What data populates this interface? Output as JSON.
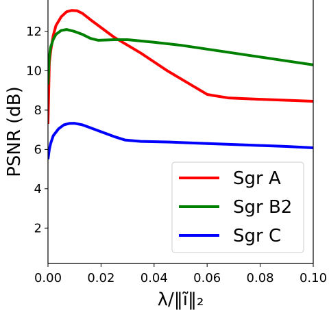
{
  "chart_data": {
    "type": "line",
    "title": "",
    "xlabel": "λ/‖ĩ‖₂",
    "ylabel": "PSNR (dB)",
    "xlim": [
      0.0,
      0.1
    ],
    "ylim": [
      0.2,
      13.6
    ],
    "xticks": [
      0.0,
      0.02,
      0.04,
      0.06,
      0.08,
      0.1
    ],
    "xtick_labels": [
      "0.00",
      "0.02",
      "0.04",
      "0.06",
      "0.08",
      "0.10"
    ],
    "yticks": [
      2,
      4,
      6,
      8,
      10,
      12
    ],
    "ytick_labels": [
      "2",
      "4",
      "6",
      "8",
      "10",
      "12"
    ],
    "grid": false,
    "legend_position": "lower-right",
    "series": [
      {
        "name": "Sgr A",
        "color": "#ff0000",
        "points": [
          [
            0.0,
            7.3
          ],
          [
            0.0005,
            10.4
          ],
          [
            0.001,
            11.0
          ],
          [
            0.002,
            11.8
          ],
          [
            0.003,
            12.3
          ],
          [
            0.005,
            12.75
          ],
          [
            0.007,
            13.0
          ],
          [
            0.009,
            13.07
          ],
          [
            0.011,
            13.05
          ],
          [
            0.013,
            12.92
          ],
          [
            0.016,
            12.6
          ],
          [
            0.02,
            12.2
          ],
          [
            0.025,
            11.7
          ],
          [
            0.03,
            11.3
          ],
          [
            0.035,
            10.9
          ],
          [
            0.04,
            10.45
          ],
          [
            0.045,
            10.0
          ],
          [
            0.05,
            9.6
          ],
          [
            0.055,
            9.2
          ],
          [
            0.06,
            8.8
          ],
          [
            0.062,
            8.75
          ],
          [
            0.068,
            8.62
          ],
          [
            0.08,
            8.55
          ],
          [
            0.1,
            8.45
          ]
        ]
      },
      {
        "name": "Sgr B2",
        "color": "#008000",
        "points": [
          [
            0.0,
            9.3
          ],
          [
            0.0005,
            10.7
          ],
          [
            0.001,
            11.2
          ],
          [
            0.002,
            11.6
          ],
          [
            0.003,
            11.85
          ],
          [
            0.005,
            12.05
          ],
          [
            0.007,
            12.1
          ],
          [
            0.01,
            12.0
          ],
          [
            0.013,
            11.85
          ],
          [
            0.016,
            11.65
          ],
          [
            0.019,
            11.55
          ],
          [
            0.025,
            11.58
          ],
          [
            0.03,
            11.58
          ],
          [
            0.04,
            11.45
          ],
          [
            0.05,
            11.3
          ],
          [
            0.06,
            11.1
          ],
          [
            0.07,
            10.9
          ],
          [
            0.08,
            10.7
          ],
          [
            0.09,
            10.5
          ],
          [
            0.1,
            10.3
          ]
        ]
      },
      {
        "name": "Sgr C",
        "color": "#0000ff",
        "points": [
          [
            0.0,
            5.5
          ],
          [
            0.0005,
            6.0
          ],
          [
            0.001,
            6.3
          ],
          [
            0.002,
            6.7
          ],
          [
            0.004,
            7.05
          ],
          [
            0.006,
            7.25
          ],
          [
            0.008,
            7.32
          ],
          [
            0.01,
            7.33
          ],
          [
            0.013,
            7.25
          ],
          [
            0.016,
            7.1
          ],
          [
            0.02,
            6.9
          ],
          [
            0.025,
            6.65
          ],
          [
            0.029,
            6.48
          ],
          [
            0.035,
            6.41
          ],
          [
            0.045,
            6.38
          ],
          [
            0.06,
            6.3
          ],
          [
            0.07,
            6.25
          ],
          [
            0.08,
            6.2
          ],
          [
            0.09,
            6.15
          ],
          [
            0.1,
            6.08
          ]
        ]
      }
    ]
  }
}
